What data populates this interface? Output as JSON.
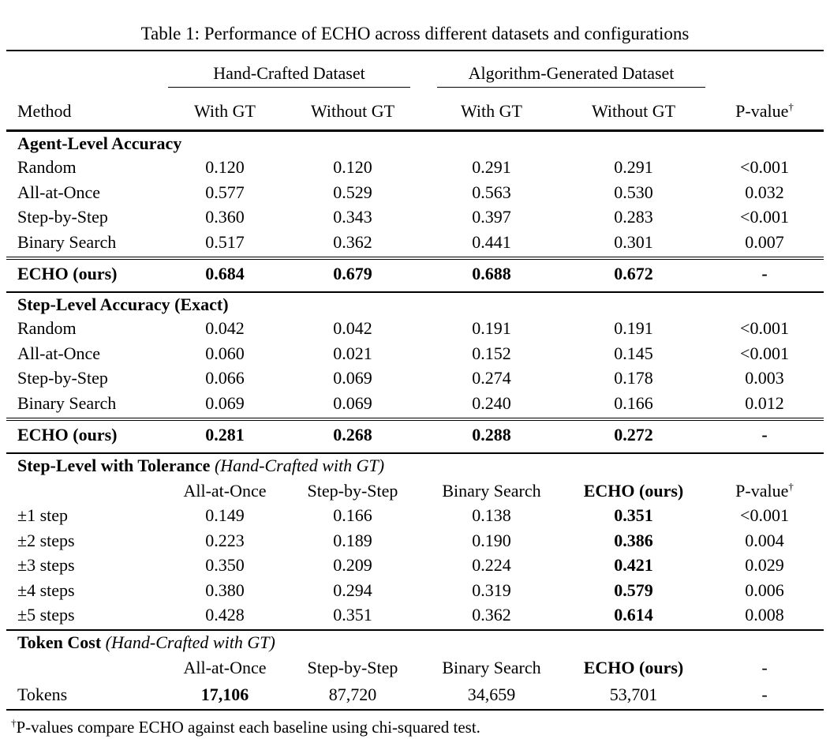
{
  "table_caption": "Table 1: Performance of ECHO across different datasets and configurations",
  "colors": {
    "background": "#ffffff",
    "text": "#000000",
    "rule": "#000000"
  },
  "columns": {
    "method": "Method",
    "group1": "Hand-Crafted Dataset",
    "group2": "Algorithm-Generated Dataset",
    "sub": [
      "With GT",
      "Without GT",
      "With GT",
      "Without GT"
    ],
    "pvalue": "P-value",
    "dagger": "†"
  },
  "sections": [
    {
      "heading": "Agent-Level Accuracy",
      "rows": [
        {
          "label": "Random",
          "values": [
            "0.120",
            "0.120",
            "0.291",
            "0.291",
            "<0.001"
          ]
        },
        {
          "label": "All-at-Once",
          "values": [
            "0.577",
            "0.529",
            "0.563",
            "0.530",
            "0.032"
          ]
        },
        {
          "label": "Step-by-Step",
          "values": [
            "0.360",
            "0.343",
            "0.397",
            "0.283",
            "<0.001"
          ]
        },
        {
          "label": "Binary Search",
          "values": [
            "0.517",
            "0.362",
            "0.441",
            "0.301",
            "0.007"
          ]
        }
      ],
      "echo_row": {
        "label": "ECHO (ours)",
        "values": [
          "0.684",
          "0.679",
          "0.688",
          "0.672",
          "-"
        ]
      }
    },
    {
      "heading": "Step-Level Accuracy (Exact)",
      "rows": [
        {
          "label": "Random",
          "values": [
            "0.042",
            "0.042",
            "0.191",
            "0.191",
            "<0.001"
          ]
        },
        {
          "label": "All-at-Once",
          "values": [
            "0.060",
            "0.021",
            "0.152",
            "0.145",
            "<0.001"
          ]
        },
        {
          "label": "Step-by-Step",
          "values": [
            "0.066",
            "0.069",
            "0.274",
            "0.178",
            "0.003"
          ]
        },
        {
          "label": "Binary Search",
          "values": [
            "0.069",
            "0.069",
            "0.240",
            "0.166",
            "0.012"
          ]
        }
      ],
      "echo_row": {
        "label": "ECHO (ours)",
        "values": [
          "0.281",
          "0.268",
          "0.288",
          "0.272",
          "-"
        ]
      }
    },
    {
      "heading": "Step-Level with Tolerance",
      "heading_note": "(Hand-Crafted with GT)",
      "subheader": {
        "cols": [
          "All-at-Once",
          "Step-by-Step",
          "Binary Search",
          "ECHO (ours)"
        ],
        "pvalue": "P-value",
        "dagger": "†"
      },
      "rows": [
        {
          "label": "±1 step",
          "values": [
            "0.149",
            "0.166",
            "0.138",
            "0.351",
            "<0.001"
          ]
        },
        {
          "label": "±2 steps",
          "values": [
            "0.223",
            "0.189",
            "0.190",
            "0.386",
            "0.004"
          ]
        },
        {
          "label": "±3 steps",
          "values": [
            "0.350",
            "0.209",
            "0.224",
            "0.421",
            "0.029"
          ]
        },
        {
          "label": "±4 steps",
          "values": [
            "0.380",
            "0.294",
            "0.319",
            "0.579",
            "0.006"
          ]
        },
        {
          "label": "±5 steps",
          "values": [
            "0.428",
            "0.351",
            "0.362",
            "0.614",
            "0.008"
          ]
        }
      ]
    },
    {
      "heading": "Token Cost",
      "heading_note": "(Hand-Crafted with GT)",
      "subheader": {
        "cols": [
          "All-at-Once",
          "Step-by-Step",
          "Binary Search",
          "ECHO (ours)"
        ],
        "last": "-"
      },
      "rows": [
        {
          "label": "Tokens",
          "values": [
            "17,106",
            "87,720",
            "34,659",
            "53,701",
            "-"
          ]
        }
      ]
    }
  ],
  "footnote": {
    "dagger": "†",
    "text": "P-values compare ECHO against each baseline using chi-squared test."
  }
}
